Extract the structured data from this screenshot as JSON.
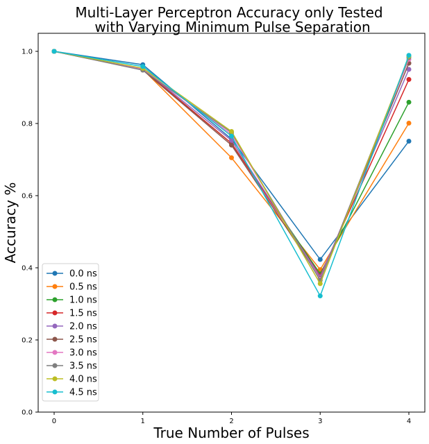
{
  "chart_data": {
    "type": "line",
    "title_line1": "Multi-Layer Perceptron Accuracy only Tested",
    "title_line2": "with Varying Minimum Pulse Separation",
    "xlabel": "True Number of Pulses",
    "ylabel": "Accuracy %",
    "x": [
      0,
      1,
      2,
      3,
      4
    ],
    "xticks": [
      "0",
      "1",
      "2",
      "3",
      "4"
    ],
    "yticks": [
      "0.0",
      "0.2",
      "0.4",
      "0.6",
      "0.8",
      "1.0"
    ],
    "xlim": [
      -0.18,
      4.18
    ],
    "ylim": [
      0,
      1.05
    ],
    "grid": false,
    "legend_position": "lower-left",
    "series": [
      {
        "name": "0.0 ns",
        "color": "#1f77b4",
        "values": [
          1.0,
          0.963,
          0.757,
          0.423,
          0.751
        ]
      },
      {
        "name": "0.5 ns",
        "color": "#ff7f0e",
        "values": [
          1.0,
          0.95,
          0.705,
          0.395,
          0.801
        ]
      },
      {
        "name": "1.0 ns",
        "color": "#2ca02c",
        "values": [
          1.0,
          0.95,
          0.745,
          0.383,
          0.859
        ]
      },
      {
        "name": "1.5 ns",
        "color": "#d62728",
        "values": [
          1.0,
          0.95,
          0.745,
          0.378,
          0.922
        ]
      },
      {
        "name": "2.0 ns",
        "color": "#9467bd",
        "values": [
          1.0,
          0.952,
          0.753,
          0.375,
          0.95
        ]
      },
      {
        "name": "2.5 ns",
        "color": "#8c564b",
        "values": [
          1.0,
          0.948,
          0.74,
          0.37,
          0.967
        ]
      },
      {
        "name": "3.0 ns",
        "color": "#e377c2",
        "values": [
          1.0,
          0.95,
          0.77,
          0.368,
          0.978
        ]
      },
      {
        "name": "3.5 ns",
        "color": "#7f7f7f",
        "values": [
          1.0,
          0.948,
          0.775,
          0.365,
          0.983
        ]
      },
      {
        "name": "4.0 ns",
        "color": "#bcbd22",
        "values": [
          1.0,
          0.953,
          0.778,
          0.356,
          0.986
        ]
      },
      {
        "name": "4.5 ns",
        "color": "#17becf",
        "values": [
          1.0,
          0.958,
          0.765,
          0.322,
          0.989
        ]
      }
    ]
  }
}
